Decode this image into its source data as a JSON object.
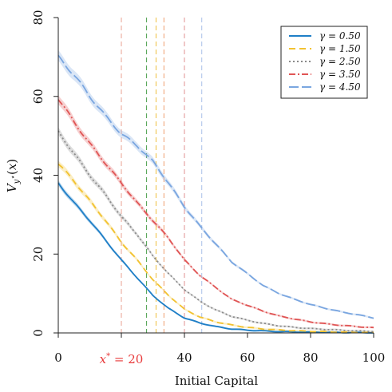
{
  "chart_data": {
    "type": "line",
    "xlabel": "Initial Capital",
    "ylabel": "V_{y*}(x)",
    "xlim": [
      0,
      100
    ],
    "ylim": [
      0,
      80
    ],
    "x_ticks": [
      "0",
      "20",
      "40",
      "60",
      "80",
      "100"
    ],
    "y_ticks": [
      "0",
      "20",
      "40",
      "60",
      "80"
    ],
    "x_ticks_hidden": [
      "20"
    ],
    "annotation": {
      "text": "x* = 20",
      "x": 20,
      "color": "#e8393a"
    },
    "legend_position": "top-right",
    "grid": false,
    "x": [
      0,
      5,
      10,
      15,
      20,
      25,
      30,
      35,
      40,
      45,
      50,
      55,
      60,
      65,
      70,
      75,
      80,
      85,
      90,
      95,
      100
    ],
    "series": [
      {
        "name": "γ = 0.50",
        "color": "#1f7fc7",
        "dash": "solid",
        "values": [
          38,
          33,
          28.5,
          23.5,
          18.5,
          14,
          9.5,
          6.2,
          3.8,
          2.5,
          1.6,
          1.0,
          0.7,
          0.5,
          0.35,
          0.25,
          0.2,
          0.15,
          0.1,
          0.08,
          0.05
        ]
      },
      {
        "name": "γ = 1.50",
        "color": "#f2c230",
        "dash": "dashed",
        "values": [
          43,
          38.5,
          33.5,
          28.5,
          23,
          18.5,
          13.5,
          9.5,
          6.0,
          4.0,
          2.8,
          2.0,
          1.4,
          1.0,
          0.75,
          0.55,
          0.4,
          0.3,
          0.2,
          0.15,
          0.1
        ]
      },
      {
        "name": "γ = 2.50",
        "color": "#8a8a8a",
        "dash": "dotted",
        "values": [
          51,
          45.5,
          40,
          35,
          29.5,
          25,
          19.5,
          15,
          11,
          8,
          5.8,
          4.2,
          3.2,
          2.4,
          1.8,
          1.4,
          1.1,
          0.9,
          0.7,
          0.5,
          0.4
        ]
      },
      {
        "name": "γ = 3.50",
        "color": "#e05555",
        "dash": "dashdot",
        "values": [
          59.5,
          53.5,
          48,
          43,
          38,
          33,
          28.5,
          24,
          18.5,
          14.5,
          11.5,
          8.5,
          7.0,
          5.5,
          4.3,
          3.5,
          2.8,
          2.3,
          1.9,
          1.6,
          1.3
        ]
      },
      {
        "name": "γ = 4.50",
        "color": "#7aa6e0",
        "dash": "longdash",
        "values": [
          70,
          65.5,
          60,
          55,
          50.5,
          47.5,
          43.5,
          38,
          32,
          27,
          22.5,
          18,
          15,
          12,
          10,
          8.5,
          7.2,
          6.2,
          5.3,
          4.6,
          3.8
        ]
      }
    ],
    "vlines": [
      {
        "x": 20,
        "color": "#e8a090"
      },
      {
        "x": 28,
        "color": "#4a9e4a"
      },
      {
        "x": 31,
        "color": "#f0c040"
      },
      {
        "x": 33.5,
        "color": "#f0a070"
      },
      {
        "x": 40,
        "color": "#e09090"
      },
      {
        "x": 45.5,
        "color": "#a8c0e8"
      }
    ]
  }
}
